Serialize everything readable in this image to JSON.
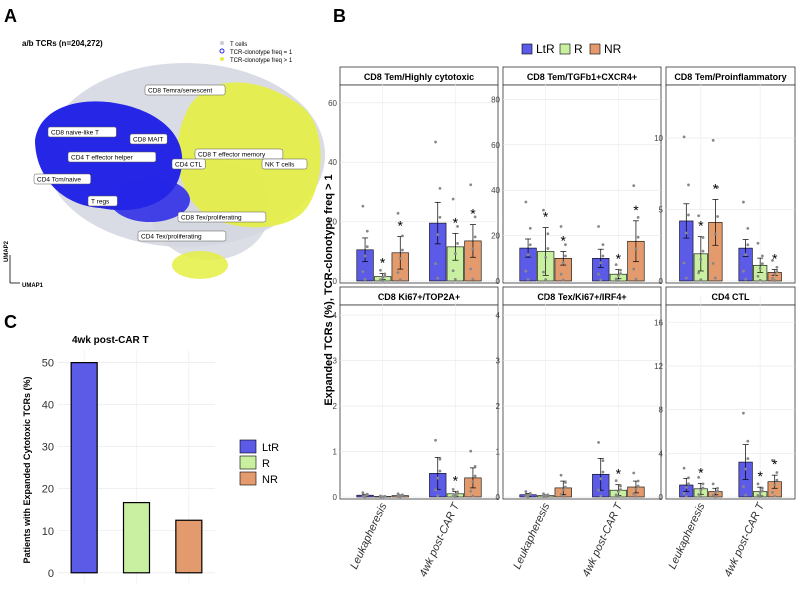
{
  "colors": {
    "LtR": "#5b5be8",
    "R": "#c8f0a0",
    "NR": "#e39b6e",
    "bg_blue": "#2626e6",
    "bg_yellow": "#e4ef42",
    "bg_gray": "#c8ccd8"
  },
  "panelA": {
    "letter": "A",
    "title": "a/b TCRs (n=204,272)",
    "legend": [
      "T cells",
      "TCR-clonotype freq = 1",
      "TCR-clonotype freq > 1"
    ],
    "xlabel": "UMAP1",
    "ylabel": "UMAP2",
    "clusters": [
      "CD8 Temra/senescent",
      "CD8 naive-like T",
      "CD8 MAIT",
      "CD4 T effector helper",
      "CD8 T effector memory",
      "CD4 CTL",
      "NK T cells",
      "CD4 Tcm/naive",
      "T regs",
      "CD8 Tex/proliferating",
      "CD4 Tex/proliferating"
    ]
  },
  "panelB": {
    "letter": "B",
    "legend": [
      "LtR",
      "R",
      "NR"
    ],
    "ylabel": "Expanded TCRs (%), TCR-clonotype freq > 1",
    "x_categories": [
      "Leukapheresis",
      "4wk post-CAR T"
    ]
  },
  "panelC": {
    "letter": "C",
    "title": "4wk post-CAR T",
    "ylabel": "Patients with Expanded Cytotoxic TCRs (%)",
    "legend": [
      "LtR",
      "R",
      "NR"
    ]
  },
  "chart_data": [
    {
      "type": "bar",
      "title": "CD8 Tem/Highly cytotoxic",
      "ylim": [
        0,
        65
      ],
      "yticks": [
        0,
        20,
        40,
        60
      ],
      "categories": [
        "Leukapheresis",
        "4wk post-CAR T"
      ],
      "series": [
        {
          "name": "LtR",
          "values": [
            10.5,
            19.5
          ],
          "err": [
            4,
            7
          ]
        },
        {
          "name": "R",
          "values": [
            1.5,
            11.5
          ],
          "err": [
            1,
            4.5
          ]
        },
        {
          "name": "NR",
          "values": [
            9.5,
            13.5
          ],
          "err": [
            5.5,
            5.5
          ]
        }
      ],
      "stars": [
        [
          "Leukapheresis",
          "R"
        ],
        [
          "Leukapheresis",
          "NR"
        ],
        [
          "4wk post-CAR T",
          "R"
        ],
        [
          "4wk post-CAR T",
          "NR"
        ]
      ]
    },
    {
      "type": "bar",
      "title": "CD8 Tem/TGFb1+CXCR4+",
      "ylim": [
        0,
        85
      ],
      "yticks": [
        0,
        20,
        40,
        60,
        80
      ],
      "categories": [
        "Leukapheresis",
        "4wk post-CAR T"
      ],
      "series": [
        {
          "name": "LtR",
          "values": [
            14.5,
            10
          ],
          "err": [
            4,
            4
          ]
        },
        {
          "name": "R",
          "values": [
            13,
            3
          ],
          "err": [
            10.5,
            2
          ]
        },
        {
          "name": "NR",
          "values": [
            10,
            17.5
          ],
          "err": [
            3,
            9
          ]
        }
      ],
      "stars": [
        [
          "Leukapheresis",
          "R"
        ],
        [
          "Leukapheresis",
          "NR"
        ],
        [
          "4wk post-CAR T",
          "R"
        ],
        [
          "4wk post-CAR T",
          "NR"
        ]
      ]
    },
    {
      "type": "bar",
      "title": "CD8 Tem/Proinflammatory",
      "ylim": [
        0,
        13.5
      ],
      "yticks": [
        0,
        5,
        10
      ],
      "categories": [
        "Leukapheresis",
        "4wk post-CAR T"
      ],
      "series": [
        {
          "name": "LtR",
          "values": [
            4.2,
            2.3
          ],
          "err": [
            1.2,
            0.6
          ]
        },
        {
          "name": "R",
          "values": [
            1.9,
            1.1
          ],
          "err": [
            1.2,
            0.5
          ]
        },
        {
          "name": "NR",
          "values": [
            4.1,
            0.6
          ],
          "err": [
            1.6,
            0.2
          ]
        }
      ],
      "stars": [
        [
          "Leukapheresis",
          "R"
        ],
        [
          "Leukapheresis",
          "NR"
        ],
        [
          "4wk post-CAR T",
          "NR"
        ]
      ]
    },
    {
      "type": "bar",
      "title": "CD8 Ki67+/TOP2A+",
      "ylim": [
        0,
        4.2
      ],
      "yticks": [
        0,
        1,
        2,
        3,
        4
      ],
      "categories": [
        "Leukapheresis",
        "4wk post-CAR T"
      ],
      "series": [
        {
          "name": "LtR",
          "values": [
            0.04,
            0.52
          ],
          "err": [
            0.02,
            0.35
          ]
        },
        {
          "name": "R",
          "values": [
            0.01,
            0.07
          ],
          "err": [
            0.01,
            0.05
          ]
        },
        {
          "name": "NR",
          "values": [
            0.03,
            0.42
          ],
          "err": [
            0.02,
            0.22
          ]
        }
      ],
      "stars": [
        [
          "4wk post-CAR T",
          "R"
        ]
      ]
    },
    {
      "type": "bar",
      "title": "CD8 Tex/Ki67+/IRF4+",
      "ylim": [
        0,
        4.2
      ],
      "yticks": [
        0,
        1,
        2,
        3,
        4
      ],
      "categories": [
        "Leukapheresis",
        "4wk post-CAR T"
      ],
      "series": [
        {
          "name": "LtR",
          "values": [
            0.05,
            0.5
          ],
          "err": [
            0.03,
            0.35
          ]
        },
        {
          "name": "R",
          "values": [
            0.03,
            0.15
          ],
          "err": [
            0.02,
            0.12
          ]
        },
        {
          "name": "NR",
          "values": [
            0.2,
            0.22
          ],
          "err": [
            0.15,
            0.13
          ]
        }
      ],
      "stars": [
        [
          "4wk post-CAR T",
          "R"
        ]
      ]
    },
    {
      "type": "bar",
      "title": "CD4 CTL",
      "ylim": [
        0,
        17.5
      ],
      "yticks": [
        0,
        4,
        8,
        12,
        16
      ],
      "categories": [
        "Leukapheresis",
        "4wk post-CAR T"
      ],
      "series": [
        {
          "name": "LtR",
          "values": [
            1.1,
            3.2
          ],
          "err": [
            0.6,
            1.6
          ]
        },
        {
          "name": "R",
          "values": [
            0.75,
            0.5
          ],
          "err": [
            0.5,
            0.4
          ]
        },
        {
          "name": "NR",
          "values": [
            0.5,
            1.4
          ],
          "err": [
            0.3,
            0.6
          ]
        }
      ],
      "stars": [
        [
          "Leukapheresis",
          "R"
        ],
        [
          "4wk post-CAR T",
          "R"
        ],
        [
          "4wk post-CAR T",
          "NR"
        ]
      ]
    },
    {
      "type": "bar",
      "title": "4wk post-CAR T",
      "ylabel": "Patients with Expanded Cytotoxic TCRs (%)",
      "ylim": [
        -1,
        53
      ],
      "yticks": [
        0,
        10,
        20,
        30,
        40,
        50
      ],
      "categories": [
        "LtR",
        "R",
        "NR"
      ],
      "values": [
        50,
        16.7,
        12.5
      ]
    }
  ]
}
